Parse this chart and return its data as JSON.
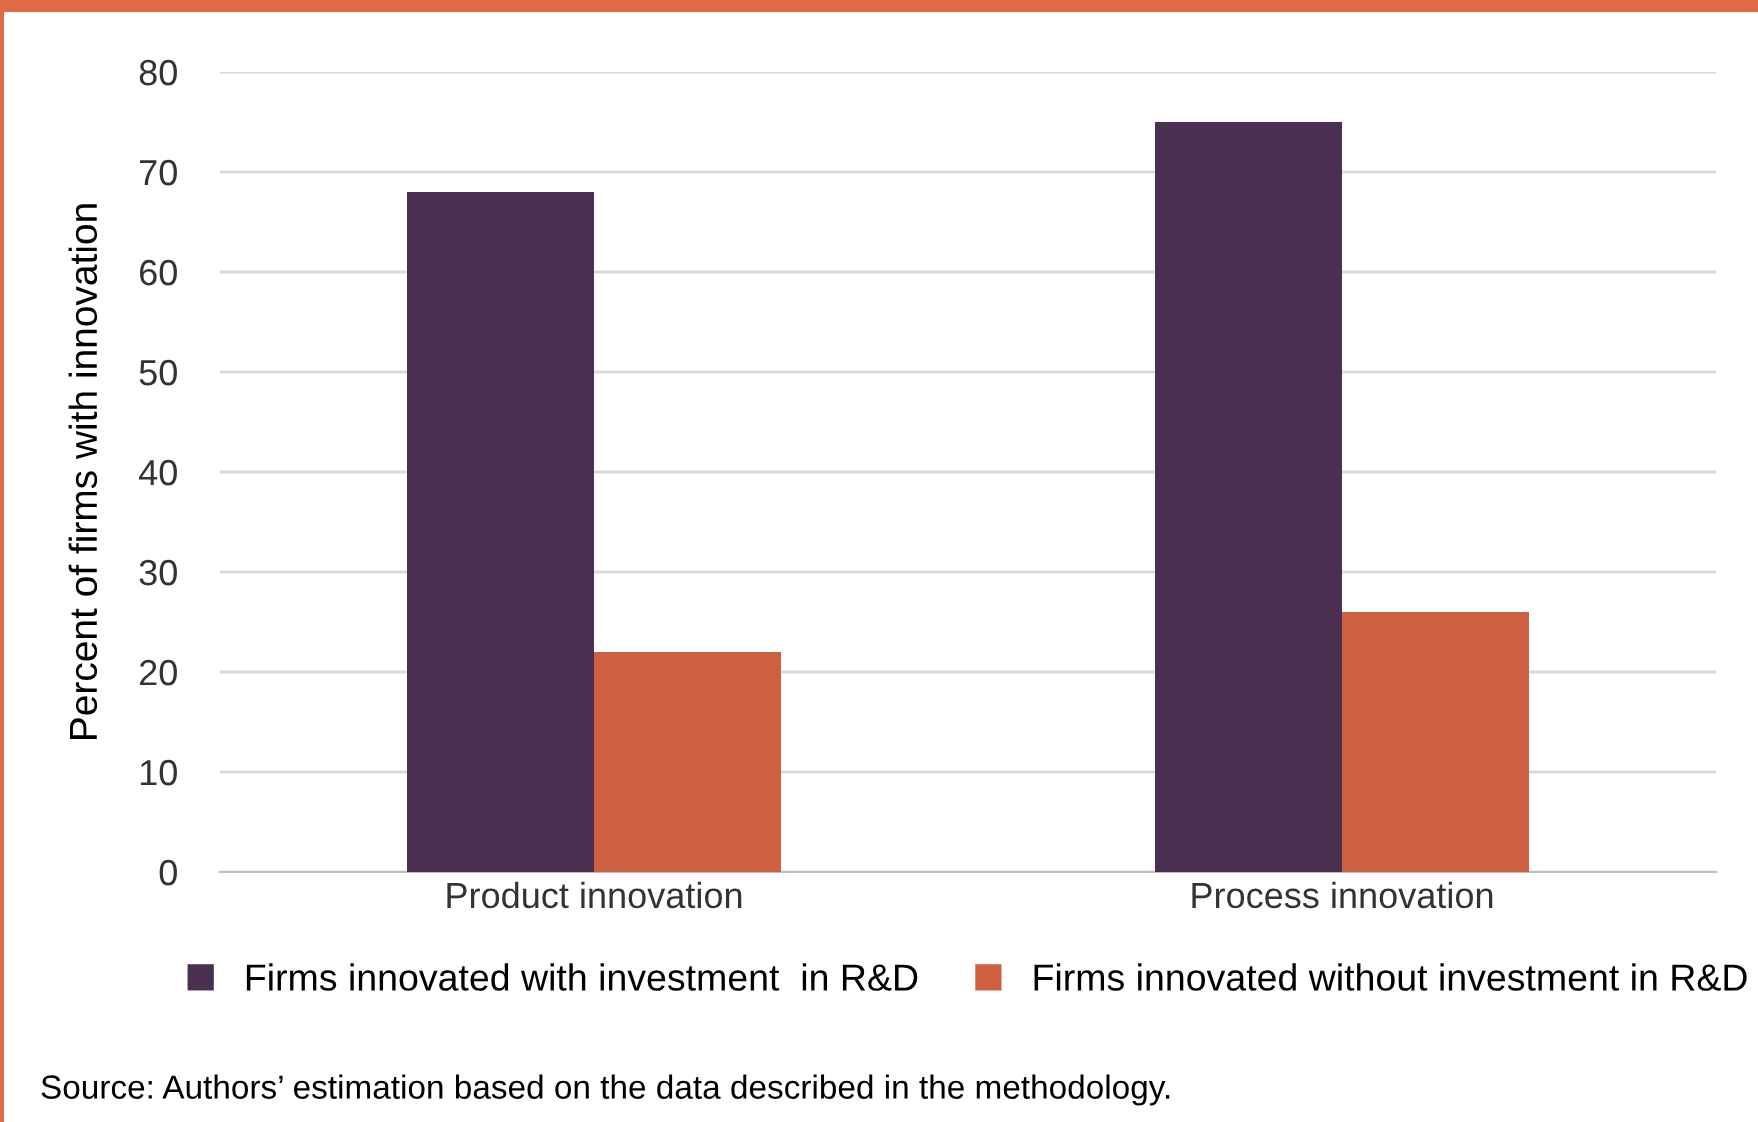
{
  "chart_data": {
    "type": "bar",
    "ylabel": "Percent of firms with innovation",
    "categories": [
      "Product innovation",
      "Process innovation"
    ],
    "series": [
      {
        "name": "Firms innovated with investment  in R&D",
        "color": "#4b2f50",
        "values": [
          68,
          75
        ]
      },
      {
        "name": "Firms innovated without investment in R&D",
        "color": "#cc6040",
        "values": [
          22,
          26
        ]
      }
    ],
    "ylim": [
      0,
      80
    ],
    "yticks": [
      0,
      10,
      20,
      30,
      40,
      50,
      60,
      70,
      80
    ],
    "grid": "y",
    "legend": "bottom",
    "annotations": [
      "Source: Authors’ estimation based on the data described in the methodology."
    ]
  }
}
